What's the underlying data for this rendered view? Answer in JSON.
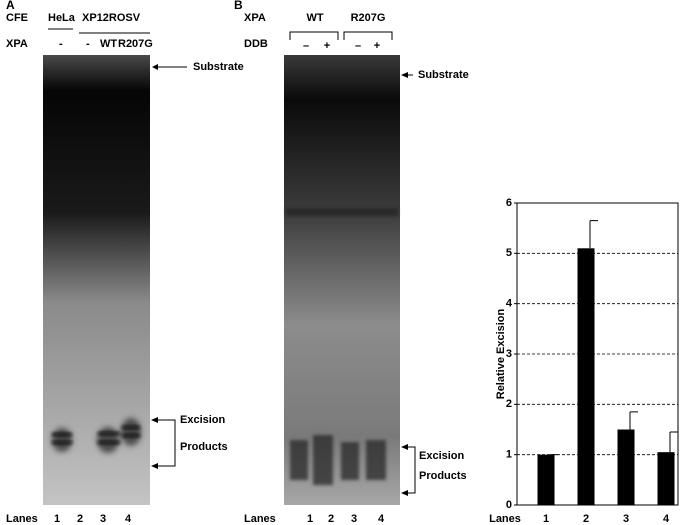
{
  "panel_a": {
    "label": "A",
    "rows": [
      {
        "label": "CFE",
        "entries": [
          "HeLa",
          "XP12ROSV"
        ]
      },
      {
        "label": "XPA",
        "entries": [
          "-",
          "-",
          "WT",
          "R207G"
        ]
      }
    ],
    "markers": [
      "Substrate",
      "Excision",
      "Products"
    ],
    "lanes_label": "Lanes",
    "lanes": [
      "1",
      "2",
      "3",
      "4"
    ]
  },
  "panel_b": {
    "label": "B",
    "rows": [
      {
        "label": "XPA",
        "entries": [
          "WT",
          "R207G"
        ]
      },
      {
        "label": "DDB",
        "entries": [
          "–",
          "+",
          "–",
          "+"
        ]
      }
    ],
    "markers": [
      "Substrate",
      "Excision",
      "Products"
    ],
    "lanes_label": "Lanes",
    "lanes": [
      "1",
      "2",
      "3",
      "4"
    ]
  },
  "chart_data": {
    "type": "bar",
    "x_label": "Lanes",
    "y_label": "Relative Excision",
    "categories": [
      "1",
      "2",
      "3",
      "4"
    ],
    "values": [
      1,
      5.1,
      1.5,
      1.05
    ],
    "errors": [
      0,
      0.55,
      0.35,
      0.4
    ],
    "color": "#000000",
    "ylim": [
      0,
      6
    ],
    "yticks": [
      0,
      1,
      2,
      3,
      4,
      5,
      6
    ],
    "grid": true
  }
}
